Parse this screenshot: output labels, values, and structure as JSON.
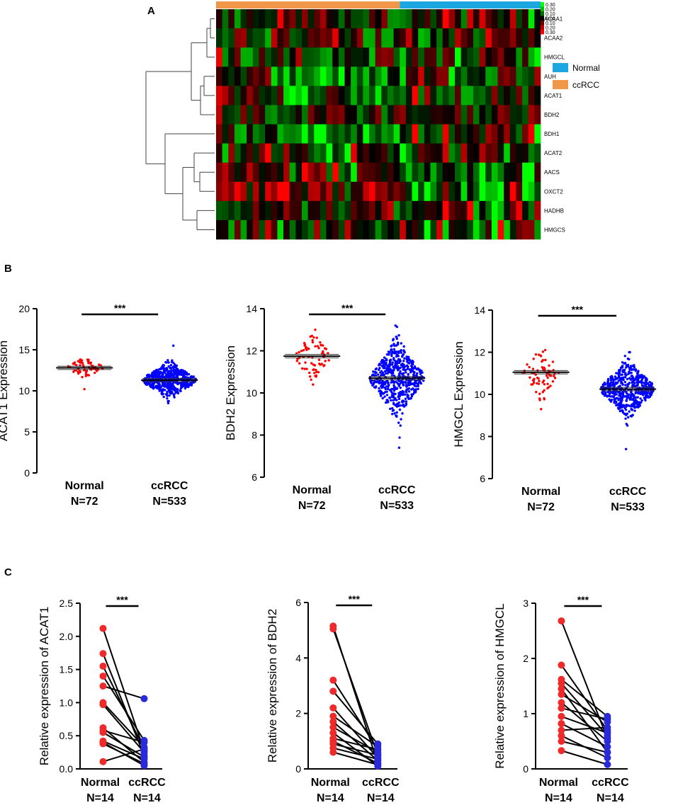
{
  "chart_data": [
    {
      "id": "A",
      "type": "heatmap",
      "panel_label": "A",
      "genes": [
        "ACAA1",
        "ACAA2",
        "HMGCL",
        "AUH",
        "ACAT1",
        "BDH2",
        "BDH1",
        "ACAT2",
        "AACS",
        "OXCT2",
        "HADHB",
        "HMGCS"
      ],
      "groups": [
        {
          "name": "ccRCC",
          "n_columns": 30,
          "color": "#f0974a"
        },
        {
          "name": "Normal",
          "n_columns": 23,
          "color": "#1ca7e0"
        }
      ],
      "legend": [
        {
          "name": "Normal",
          "color": "#1ca7e0"
        },
        {
          "name": "ccRCC",
          "color": "#f0974a"
        }
      ],
      "color_scale_labels": [
        "0.30",
        "0.20",
        "0.10",
        "0.00",
        "0.10",
        "0.20",
        "0.30"
      ],
      "dendrogram": "row clustering tree on left"
    },
    {
      "id": "B1",
      "type": "scatter",
      "panel_label": "B",
      "ylabel": "ACAT1 Expression",
      "ylim": [
        0,
        20
      ],
      "yticks": [
        0,
        5,
        10,
        15,
        20
      ],
      "groups": [
        {
          "name": "Normal",
          "n_label": "N=72",
          "n": 72,
          "mean": 12.8,
          "sd": 0.55,
          "min": 10.2,
          "max": 13.8,
          "color": "#ff0000"
        },
        {
          "name": "ccRCC",
          "n_label": "N=533",
          "n": 533,
          "mean": 11.3,
          "sd": 0.9,
          "min": 8.5,
          "max": 15.5,
          "color": "#0000ff"
        }
      ],
      "significance": "***"
    },
    {
      "id": "B2",
      "type": "scatter",
      "ylabel": "BDH2 Expression",
      "ylim": [
        6,
        14
      ],
      "yticks": [
        6,
        8,
        10,
        12,
        14
      ],
      "groups": [
        {
          "name": "Normal",
          "n_label": "N=72",
          "n": 72,
          "mean": 11.75,
          "sd": 0.5,
          "min": 10.4,
          "max": 13.0,
          "color": "#ff0000"
        },
        {
          "name": "ccRCC",
          "n_label": "N=533",
          "n": 533,
          "mean": 10.7,
          "sd": 0.75,
          "min": 7.4,
          "max": 13.2,
          "color": "#0000ff"
        }
      ],
      "significance": "***"
    },
    {
      "id": "B3",
      "type": "scatter",
      "ylabel": "HMGCL Expression",
      "ylim": [
        6,
        14
      ],
      "yticks": [
        6,
        8,
        10,
        12,
        14
      ],
      "groups": [
        {
          "name": "Normal",
          "n_label": "N=72",
          "n": 72,
          "mean": 11.05,
          "sd": 0.5,
          "min": 9.3,
          "max": 12.1,
          "color": "#ff0000"
        },
        {
          "name": "ccRCC",
          "n_label": "N=533",
          "n": 533,
          "mean": 10.25,
          "sd": 0.55,
          "min": 7.4,
          "max": 12.0,
          "color": "#0000ff"
        }
      ],
      "significance": "***"
    },
    {
      "id": "C1",
      "type": "line",
      "panel_label": "C",
      "ylabel": "Relative expression of ACAT1",
      "ylim": [
        0,
        2.5
      ],
      "yticks": [
        "0.0",
        "0.5",
        "1.0",
        "1.5",
        "2.0",
        "2.5"
      ],
      "categories": [
        "Normal",
        "ccRCC"
      ],
      "n_labels": [
        "N=14",
        "N=14"
      ],
      "pairs": [
        [
          2.12,
          0.27
        ],
        [
          1.74,
          0.2
        ],
        [
          1.55,
          0.3
        ],
        [
          1.4,
          0.43
        ],
        [
          1.25,
          1.06
        ],
        [
          1.0,
          0.33
        ],
        [
          0.97,
          0.25
        ],
        [
          0.62,
          0.1
        ],
        [
          0.58,
          0.4
        ],
        [
          0.55,
          0.18
        ],
        [
          0.42,
          0.15
        ],
        [
          0.4,
          0.05
        ],
        [
          0.38,
          0.08
        ],
        [
          0.11,
          0.3
        ]
      ],
      "significance": "***"
    },
    {
      "id": "C2",
      "type": "line",
      "ylabel": "Relative expression of BDH2",
      "ylim": [
        0,
        6
      ],
      "yticks": [
        "0",
        "2",
        "4",
        "6"
      ],
      "categories": [
        "Normal",
        "ccRCC"
      ],
      "n_labels": [
        "N=14",
        "N=14"
      ],
      "pairs": [
        [
          5.15,
          0.2
        ],
        [
          5.05,
          0.5
        ],
        [
          3.2,
          0.7
        ],
        [
          2.8,
          0.9
        ],
        [
          2.2,
          0.4
        ],
        [
          1.9,
          0.8
        ],
        [
          1.7,
          0.3
        ],
        [
          1.5,
          0.6
        ],
        [
          1.3,
          0.1
        ],
        [
          1.1,
          0.7
        ],
        [
          1.0,
          0.2
        ],
        [
          0.9,
          0.5
        ],
        [
          0.75,
          0.35
        ],
        [
          0.6,
          0.15
        ]
      ],
      "significance": "***"
    },
    {
      "id": "C3",
      "type": "line",
      "ylabel": "Relative expression of HMGCL",
      "ylim": [
        0,
        3
      ],
      "yticks": [
        "0",
        "1",
        "2",
        "3"
      ],
      "categories": [
        "Normal",
        "ccRCC"
      ],
      "n_labels": [
        "N=14",
        "N=14"
      ],
      "pairs": [
        [
          2.68,
          0.55
        ],
        [
          1.88,
          0.7
        ],
        [
          1.62,
          0.95
        ],
        [
          1.55,
          0.6
        ],
        [
          1.45,
          0.3
        ],
        [
          1.35,
          0.85
        ],
        [
          1.2,
          0.5
        ],
        [
          1.1,
          0.9
        ],
        [
          0.95,
          0.65
        ],
        [
          0.82,
          0.4
        ],
        [
          0.7,
          0.75
        ],
        [
          0.6,
          0.2
        ],
        [
          0.5,
          0.3
        ],
        [
          0.33,
          0.08
        ]
      ],
      "significance": "***"
    }
  ]
}
